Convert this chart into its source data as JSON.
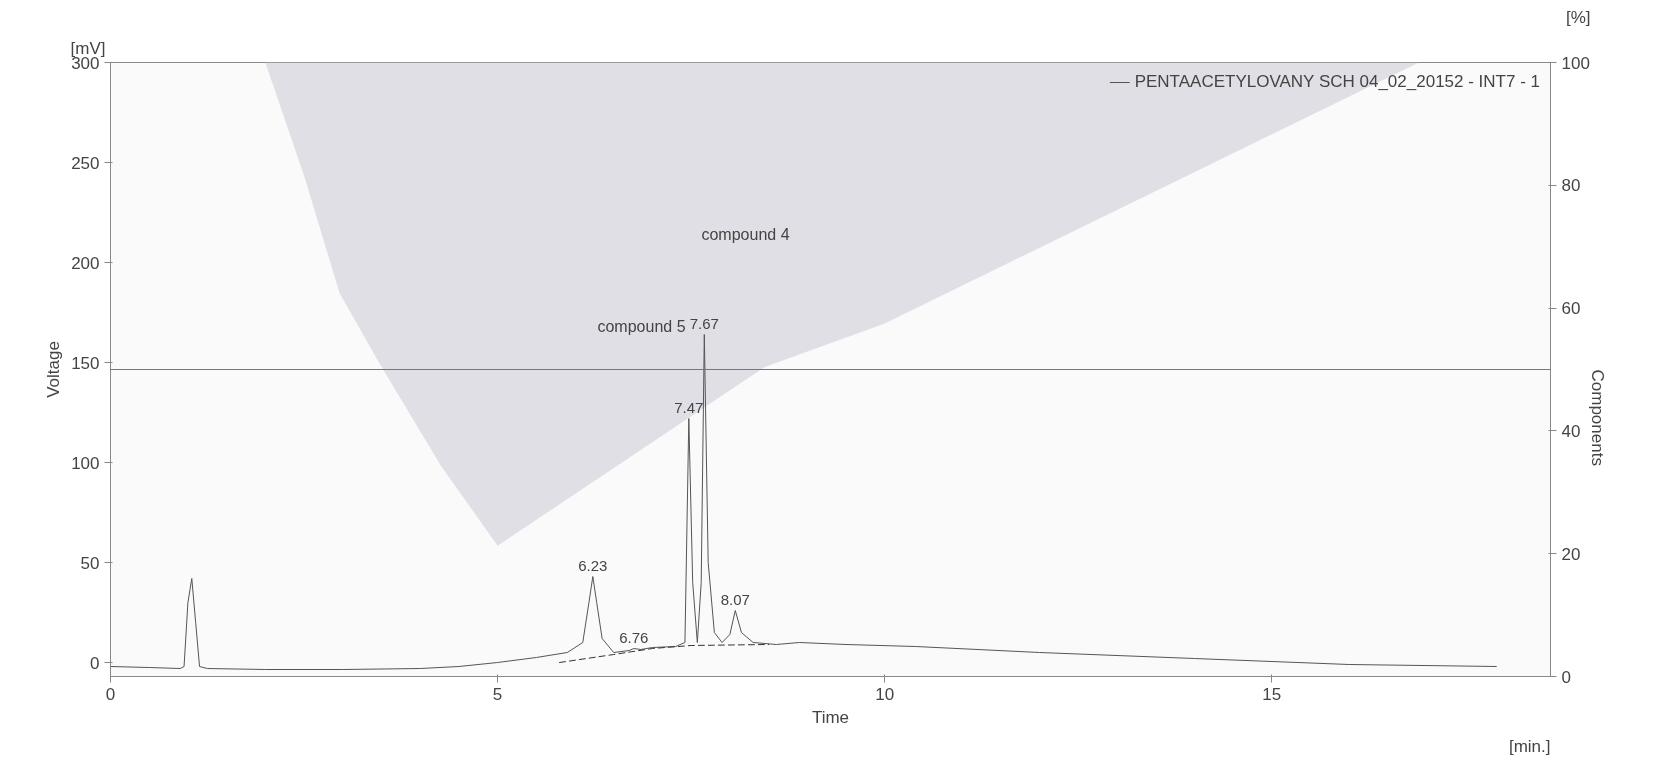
{
  "chart_data": {
    "type": "line",
    "xlabel": "Time",
    "ylabel": "Voltage",
    "y2label": "Components",
    "xlim": [
      0,
      18.6
    ],
    "xticks": [
      0,
      5,
      10,
      15
    ],
    "ylim": [
      -7,
      300
    ],
    "yticks": [
      0,
      50,
      100,
      150,
      200,
      250,
      300
    ],
    "y2lim": [
      0,
      100
    ],
    "y2ticks": [
      0,
      20,
      40,
      60,
      80,
      100
    ],
    "grid": false,
    "legend": "top right",
    "marker": "none",
    "series": [
      {
        "type": "area",
        "axis": "y2",
        "color": "#dcdce2",
        "x": [
          2.0,
          2.5,
          2.96,
          3.46,
          4.27,
          5.0,
          8.45,
          10.0,
          16.9
        ],
        "values": [
          100,
          81.6,
          62.4,
          51.3,
          34.3,
          21.3,
          50.4,
          57.5,
          100
        ]
      },
      {
        "name": "PENTAACETYLOVANY SCH 04_02_20152 - INT7 - 1",
        "color": "#555555",
        "line_style": "solid",
        "x": [
          0,
          0.5,
          0.9,
          0.95,
          1.0,
          1.05,
          1.1,
          1.15,
          1.25,
          2.0,
          3.0,
          4.0,
          4.5,
          5.0,
          5.5,
          5.9,
          6.1,
          6.18,
          6.23,
          6.28,
          6.35,
          6.5,
          6.7,
          6.76,
          6.85,
          7.0,
          7.3,
          7.42,
          7.47,
          7.52,
          7.58,
          7.63,
          7.67,
          7.72,
          7.8,
          7.9,
          8.0,
          8.07,
          8.15,
          8.3,
          8.6,
          8.9,
          9.5,
          10.4,
          12.0,
          14.0,
          16.0,
          17.9
        ],
        "values": [
          -2,
          -2.5,
          -3,
          -2,
          30,
          42,
          20,
          -2,
          -3,
          -3.5,
          -3.5,
          -3,
          -2,
          0,
          2.5,
          5,
          10,
          30,
          43,
          30,
          12,
          5,
          6,
          7,
          6.5,
          7.5,
          8,
          10,
          122,
          40,
          10,
          40,
          164,
          50,
          15,
          10,
          14,
          26,
          15,
          10,
          9,
          10,
          9,
          8,
          5,
          2,
          -1,
          -2
        ]
      },
      {
        "type": "line",
        "color": "#333333",
        "line_style": "dashed",
        "x": [
          5.8,
          6.5,
          7.0,
          7.5,
          8.5
        ],
        "values": [
          0,
          4,
          7,
          8.5,
          9
        ]
      }
    ],
    "ref_lines": [
      {
        "axis": "y2",
        "value": 50,
        "color": "#777777"
      }
    ],
    "annotations": [
      "[mV]",
      "[%]",
      "[min.]",
      {
        "text": "6.23",
        "x": 6.23,
        "y": 43
      },
      {
        "text": "6.76",
        "x": 6.76,
        "y": 7
      },
      {
        "text": "7.47",
        "x": 7.47,
        "y": 122
      },
      {
        "text": "7.67",
        "x": 7.67,
        "y": 164
      },
      {
        "text": "8.07",
        "x": 8.07,
        "y": 26
      },
      "compound 5",
      "compound 4"
    ]
  }
}
